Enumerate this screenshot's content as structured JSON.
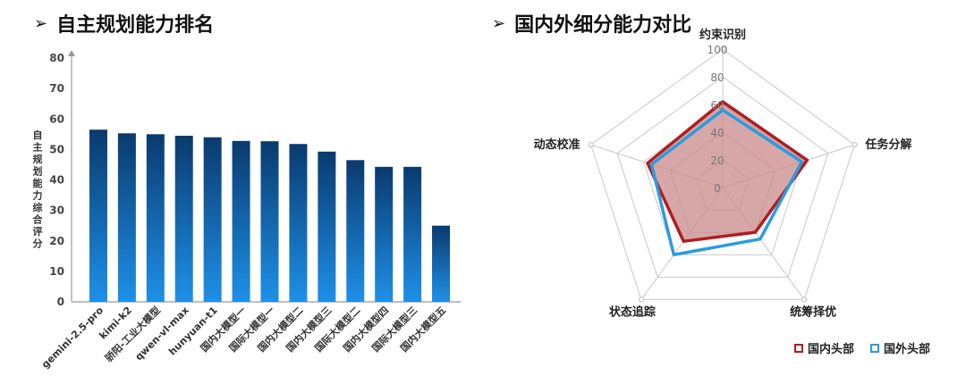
{
  "left": {
    "title": "自主规划能力排名",
    "arrow": "➢"
  },
  "right": {
    "title": "国内外细分能力对比",
    "arrow": "➢"
  },
  "chart_data": [
    {
      "type": "bar",
      "title": "自主规划能力排名",
      "ylabel": "自主规划能力综合评分",
      "xlabel": "",
      "ylim": [
        0,
        80
      ],
      "yticks": [
        0,
        10,
        20,
        30,
        40,
        50,
        60,
        70,
        80
      ],
      "categories": [
        "gemini-2.5-pro",
        "kimi-k2",
        "骄阳-工业大模型",
        "qwen-vl-max",
        "hunyuan-t1",
        "国内大模型一",
        "国际大模型一",
        "国内大模型二",
        "国内大模型三",
        "国际大模型二",
        "国内大模型四",
        "国际大模型三",
        "国内大模型五"
      ],
      "values": [
        56.5,
        55.3,
        55.0,
        54.5,
        54.0,
        52.8,
        52.7,
        51.8,
        49.3,
        46.5,
        44.3,
        44.3,
        25.0
      ],
      "colors": {
        "bar_top": "#0a3a6e",
        "bar_bottom": "#1e90e8",
        "axis": "#999999"
      }
    },
    {
      "type": "radar",
      "title": "国内外细分能力对比",
      "axes": [
        "约束识别",
        "任务分解",
        "统筹择优",
        "状态追踪",
        "动态校准"
      ],
      "rlim": [
        0,
        100
      ],
      "rticks": [
        0,
        20,
        40,
        60,
        80,
        100
      ],
      "series": [
        {
          "name": "国内头部",
          "values": [
            62,
            64,
            40,
            48,
            57
          ],
          "color": "#b01e1e",
          "fill": "#c98a8a"
        },
        {
          "name": "国外头部",
          "values": [
            56,
            60,
            46,
            60,
            54
          ],
          "color": "#2a9be0"
        }
      ],
      "legend": "bottom-right"
    }
  ]
}
